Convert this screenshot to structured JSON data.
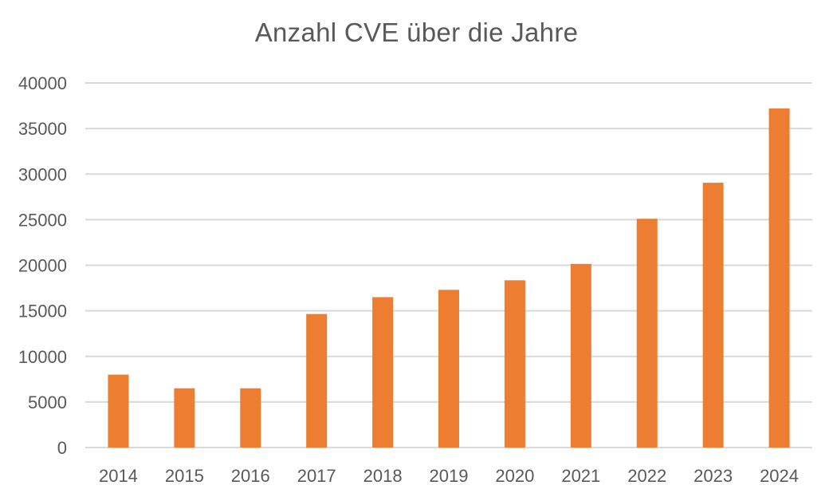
{
  "chart_data": {
    "type": "bar",
    "title": "Anzahl CVE über die Jahre",
    "xlabel": "",
    "ylabel": "",
    "categories": [
      "2014",
      "2015",
      "2016",
      "2017",
      "2018",
      "2019",
      "2020",
      "2021",
      "2022",
      "2023",
      "2024"
    ],
    "series": [
      {
        "values": [
          8000,
          6500,
          6500,
          14650,
          16500,
          17300,
          18350,
          20150,
          25100,
          29050,
          37200
        ]
      }
    ],
    "ylim": [
      0,
      40000
    ],
    "yticks": [
      0,
      5000,
      10000,
      15000,
      20000,
      25000,
      30000,
      35000,
      40000
    ],
    "grid": true,
    "legend": "none",
    "colors": {
      "bar": "#ED7D31",
      "grid": "#D9D9D9",
      "text": "#595959"
    }
  }
}
